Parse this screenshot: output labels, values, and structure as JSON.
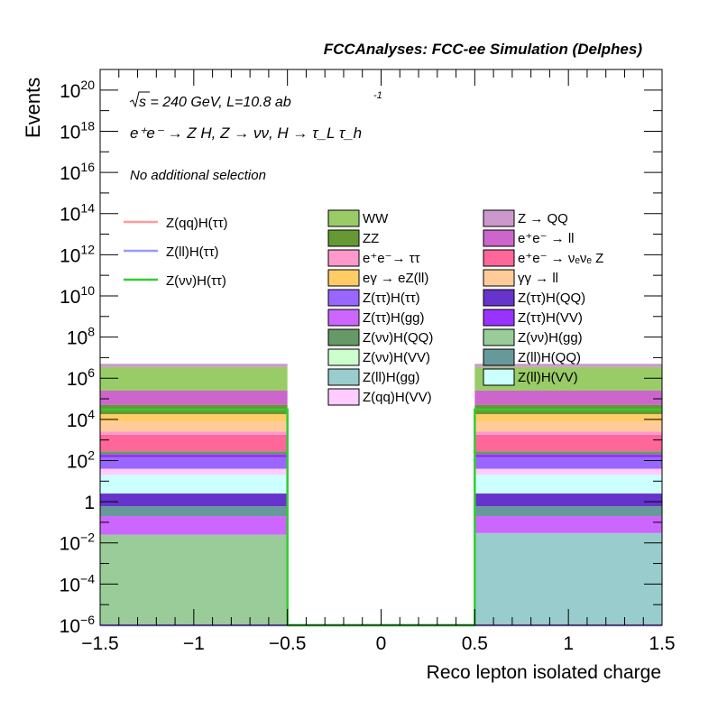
{
  "chart_data": {
    "type": "bar",
    "title": "FCCAnalyses: FCC-ee Simulation (Delphes)",
    "annotations": {
      "energy_sqrt": "s",
      "energy_rest": " = 240 GeV, L=10.8 ab",
      "energy_exp": "-1",
      "process": "e⁺e⁻ → Z H, Z → νν, H → τ_L τ_h",
      "selection": "No additional selection"
    },
    "xlabel": "Reco lepton isolated charge",
    "ylabel": "Events",
    "xlim": [
      -1.5,
      1.5
    ],
    "ylim": [
      1e-06,
      1e+21
    ],
    "yscale": "log",
    "x_ticks": [
      "−1.5",
      "−1",
      "−0.5",
      "0",
      "0.5",
      "1",
      "1.5"
    ],
    "y_ticks": [
      {
        "base": "10",
        "exp": "−6"
      },
      {
        "base": "10",
        "exp": "−4"
      },
      {
        "base": "10",
        "exp": "−2"
      },
      {
        "base": "1",
        "exp": ""
      },
      {
        "base": "10",
        "exp": "2"
      },
      {
        "base": "10",
        "exp": "4"
      },
      {
        "base": "10",
        "exp": "6"
      },
      {
        "base": "10",
        "exp": "8"
      },
      {
        "base": "10",
        "exp": "10"
      },
      {
        "base": "10",
        "exp": "12"
      },
      {
        "base": "10",
        "exp": "14"
      },
      {
        "base": "10",
        "exp": "16"
      },
      {
        "base": "10",
        "exp": "18"
      },
      {
        "base": "10",
        "exp": "20"
      }
    ],
    "bins": [
      {
        "x0": -1.5,
        "x1": -0.5
      },
      {
        "x0": -0.5,
        "x1": 0.5
      },
      {
        "x0": 0.5,
        "x1": 1.5
      }
    ],
    "stack": [
      {
        "name": "Z(νν)H(gg)",
        "color": "#99cc99",
        "bin_tops": [
          0.025,
          0,
          0
        ]
      },
      {
        "name": "Z(ll)H(gg)",
        "color": "#99cccc",
        "bin_tops": [
          0,
          0,
          0.03
        ]
      },
      {
        "name": "Z(νν)H(VV)",
        "color": "#ccffcc",
        "bin_tops": [
          0,
          0,
          0
        ]
      },
      {
        "name": "Z(ττ)H(gg)",
        "color": "#cc66ff",
        "bin_tops": [
          0.2,
          0,
          0.2
        ]
      },
      {
        "name": "Z(ll)H(QQ)",
        "color": "#669999",
        "bin_tops": [
          0.6,
          0,
          0.6
        ]
      },
      {
        "name": "Z(ττ)H(QQ)",
        "color": "#6633cc",
        "bin_tops": [
          2.5,
          0,
          2.5
        ]
      },
      {
        "name": "Z(ll)H(VV)",
        "color": "#ccffff",
        "bin_tops": [
          20,
          0,
          20
        ]
      },
      {
        "name": "Z(qq)H(VV)",
        "color": "#ffccff",
        "bin_tops": [
          40,
          0,
          40
        ]
      },
      {
        "name": "Z(ττ)H(ττ)",
        "color": "#9966ff",
        "bin_tops": [
          140,
          0,
          140
        ]
      },
      {
        "name": "Z(ττ)H(VV)",
        "color": "#9933ff",
        "bin_tops": [
          200,
          0,
          200
        ]
      },
      {
        "name": "Z(νν)H(QQ)",
        "color": "#669966",
        "bin_tops": [
          280,
          0,
          280
        ]
      },
      {
        "name": "e⁺e⁻ → ν_e ν_e Z",
        "color": "#ff6699",
        "bin_tops": [
          1800,
          0,
          1800
        ]
      },
      {
        "name": "e⁺e⁻ → ττ",
        "color": "#ff99cc",
        "bin_tops": [
          2600,
          0,
          2600
        ]
      },
      {
        "name": "γγ → ll",
        "color": "#ffcc99",
        "bin_tops": [
          8000,
          0,
          8000
        ]
      },
      {
        "name": "eγ → eZ(ll)",
        "color": "#ffcc66",
        "bin_tops": [
          18000,
          0,
          18000
        ]
      },
      {
        "name": "ZZ",
        "color": "#669933",
        "bin_tops": [
          50000,
          0,
          50000
        ]
      },
      {
        "name": "e⁺e⁻ → ll",
        "color": "#cc66cc",
        "bin_tops": [
          250000,
          0,
          250000
        ]
      },
      {
        "name": "WW",
        "color": "#99cc66",
        "bin_tops": [
          3500000,
          0,
          3500000
        ]
      },
      {
        "name": "Z → QQ",
        "color": "#cc99cc",
        "bin_tops": [
          5000000,
          0,
          5000000
        ]
      }
    ],
    "signals": [
      {
        "name": "Z(qq)H(ττ)",
        "color": "#ff9999",
        "values": [
          0,
          0,
          0
        ]
      },
      {
        "name": "Z(ll)H(ττ)",
        "color": "#9999ff",
        "values": [
          0,
          0,
          0
        ]
      },
      {
        "name": "Z(νν)H(ττ)",
        "color": "#33cc33",
        "values": [
          30000,
          0,
          30000
        ]
      }
    ],
    "legend_signals": [
      {
        "label": "Z(qq)H(ττ)",
        "color": "#ff9999"
      },
      {
        "label": "Z(ll)H(ττ)",
        "color": "#9999ff"
      },
      {
        "label": "Z(νν)H(ττ)",
        "color": "#33cc33"
      }
    ],
    "legend_col1": [
      {
        "label": "WW",
        "color": "#99cc66"
      },
      {
        "label": "ZZ",
        "color": "#669933"
      },
      {
        "label": "e⁺e⁻→ ττ",
        "color": "#ff99cc"
      },
      {
        "label": "eγ → eZ(ll)",
        "color": "#ffcc66"
      },
      {
        "label": "Z(ττ)H(ττ)",
        "color": "#9966ff"
      },
      {
        "label": "Z(ττ)H(gg)",
        "color": "#cc66ff"
      },
      {
        "label": "Z(νν)H(QQ)",
        "color": "#669966"
      },
      {
        "label": "Z(νν)H(VV)",
        "color": "#ccffcc"
      },
      {
        "label": "Z(ll)H(gg)",
        "color": "#99cccc"
      },
      {
        "label": "Z(qq)H(VV)",
        "color": "#ffccff"
      }
    ],
    "legend_col2": [
      {
        "label": "Z → QQ",
        "color": "#cc99cc"
      },
      {
        "label": "e⁺e⁻ → ll",
        "color": "#cc66cc"
      },
      {
        "label": "e⁺e⁻ → νₑνₑ Z",
        "color": "#ff6699"
      },
      {
        "label": "γγ → ll",
        "color": "#ffcc99"
      },
      {
        "label": "Z(ττ)H(QQ)",
        "color": "#6633cc"
      },
      {
        "label": "Z(ττ)H(VV)",
        "color": "#9933ff"
      },
      {
        "label": "Z(νν)H(gg)",
        "color": "#99cc99"
      },
      {
        "label": "Z(ll)H(QQ)",
        "color": "#669999"
      },
      {
        "label": "Z(ll)H(VV)",
        "color": "#ccffff"
      }
    ]
  }
}
